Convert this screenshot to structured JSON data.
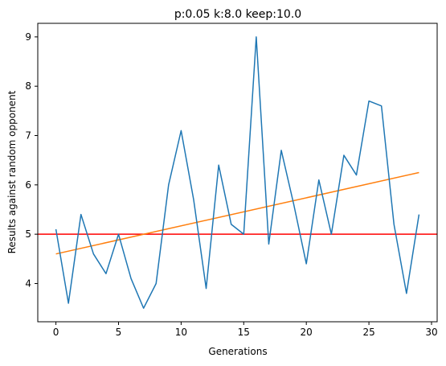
{
  "chart_data": {
    "type": "line",
    "title": "p:0.05 k:8.0 keep:10.0",
    "xlabel": "Generations",
    "ylabel": "Results against random opponent",
    "xlim": [
      -1.45,
      30.45
    ],
    "ylim": [
      3.225,
      9.275
    ],
    "xticks": [
      0,
      5,
      10,
      15,
      20,
      25,
      30
    ],
    "yticks": [
      4,
      5,
      6,
      7,
      8,
      9
    ],
    "grid": false,
    "colors": {
      "series": "#1f77b4",
      "trend": "#ff7f0e",
      "baseline": "#ff0000"
    },
    "series": [
      {
        "x": [
          0,
          1,
          2,
          3,
          4,
          5,
          6,
          7,
          8,
          9,
          10,
          11,
          12,
          13,
          14,
          15,
          16,
          17,
          18,
          19,
          20,
          21,
          22,
          23,
          24,
          25,
          26,
          27,
          28,
          29
        ],
        "values": [
          5.1,
          3.6,
          5.4,
          4.6,
          4.2,
          5.0,
          4.1,
          3.5,
          4.0,
          6.0,
          7.1,
          5.7,
          3.9,
          6.4,
          5.2,
          5.0,
          9.0,
          4.8,
          6.7,
          5.6,
          4.4,
          6.1,
          5.0,
          6.6,
          6.2,
          7.7,
          7.6,
          5.2,
          3.8,
          5.4
        ]
      }
    ],
    "trend_line": {
      "x": [
        0,
        29
      ],
      "y": [
        4.6,
        6.25
      ]
    },
    "baseline": {
      "y": 5.0
    }
  }
}
